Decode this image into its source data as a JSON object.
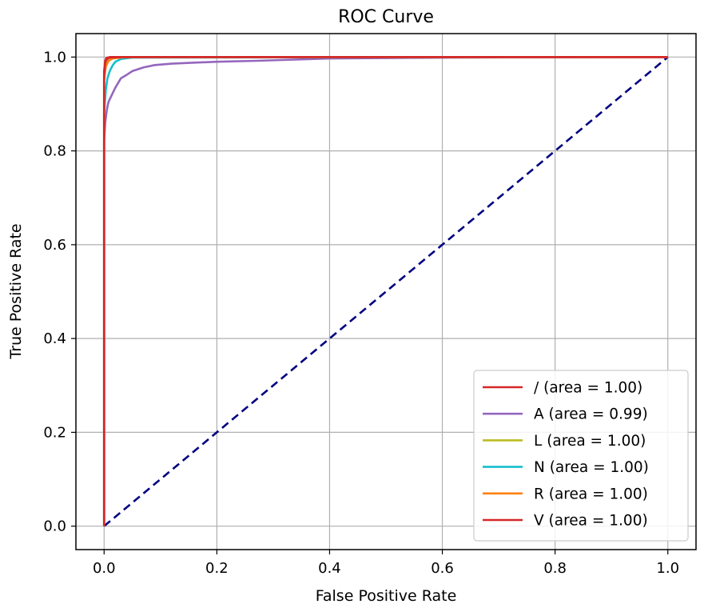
{
  "chart_data": {
    "type": "line",
    "title": "ROC Curve",
    "xlabel": "False Positive Rate",
    "ylabel": "True Positive Rate",
    "xlim": [
      -0.05,
      1.05
    ],
    "ylim": [
      -0.05,
      1.05
    ],
    "xticks": [
      0.0,
      0.2,
      0.4,
      0.6,
      0.8,
      1.0
    ],
    "yticks": [
      0.0,
      0.2,
      0.4,
      0.6,
      0.8,
      1.0
    ],
    "xtick_labels": [
      "0.0",
      "0.2",
      "0.4",
      "0.6",
      "0.8",
      "1.0"
    ],
    "ytick_labels": [
      "0.0",
      "0.2",
      "0.4",
      "0.6",
      "0.8",
      "1.0"
    ],
    "grid": true,
    "legend_position": "lower-right",
    "diagonal": {
      "x": [
        0.0,
        1.0
      ],
      "y": [
        0.0,
        1.0
      ],
      "color": "#000080",
      "style": "dashed"
    },
    "series": [
      {
        "name": "/ (area = 1.00)",
        "color": "#d62728",
        "x": [
          0.0,
          0.0,
          0.002,
          0.004,
          0.01,
          0.05,
          1.0
        ],
        "y": [
          0.0,
          0.97,
          0.992,
          0.998,
          1.0,
          1.0,
          1.0
        ]
      },
      {
        "name": "A (area = 0.99)",
        "color": "#9467bd",
        "x": [
          0.0,
          0.0,
          0.002,
          0.004,
          0.006,
          0.008,
          0.012,
          0.016,
          0.02,
          0.025,
          0.03,
          0.04,
          0.05,
          0.07,
          0.09,
          0.12,
          0.16,
          0.2,
          0.27,
          0.35,
          0.4,
          0.62,
          1.0
        ],
        "y": [
          0.0,
          0.82,
          0.86,
          0.88,
          0.895,
          0.905,
          0.915,
          0.925,
          0.935,
          0.945,
          0.955,
          0.962,
          0.97,
          0.978,
          0.983,
          0.986,
          0.988,
          0.99,
          0.992,
          0.995,
          0.997,
          0.999,
          1.0
        ]
      },
      {
        "name": "L (area = 1.00)",
        "color": "#bcbd22",
        "x": [
          0.0,
          0.0,
          0.002,
          0.005,
          0.01,
          0.02,
          1.0
        ],
        "y": [
          0.0,
          0.96,
          0.985,
          0.995,
          0.999,
          1.0,
          1.0
        ]
      },
      {
        "name": "N (area = 1.00)",
        "color": "#17becf",
        "x": [
          0.0,
          0.0,
          0.003,
          0.006,
          0.01,
          0.015,
          0.02,
          0.03,
          0.05,
          1.0
        ],
        "y": [
          0.0,
          0.88,
          0.93,
          0.955,
          0.97,
          0.982,
          0.99,
          0.996,
          0.999,
          1.0
        ]
      },
      {
        "name": "R (area = 1.00)",
        "color": "#ff7f0e",
        "x": [
          0.0,
          0.0,
          0.003,
          0.008,
          0.015,
          0.03,
          0.05,
          1.0
        ],
        "y": [
          0.0,
          0.95,
          0.98,
          0.992,
          0.997,
          0.999,
          1.0,
          1.0
        ]
      },
      {
        "name": "V (area = 1.00)",
        "color": "#d62728",
        "x": [
          0.0,
          0.0,
          0.002,
          0.005,
          0.01,
          0.03,
          1.0
        ],
        "y": [
          0.0,
          0.96,
          0.988,
          0.996,
          0.999,
          1.0,
          1.0
        ]
      }
    ]
  }
}
